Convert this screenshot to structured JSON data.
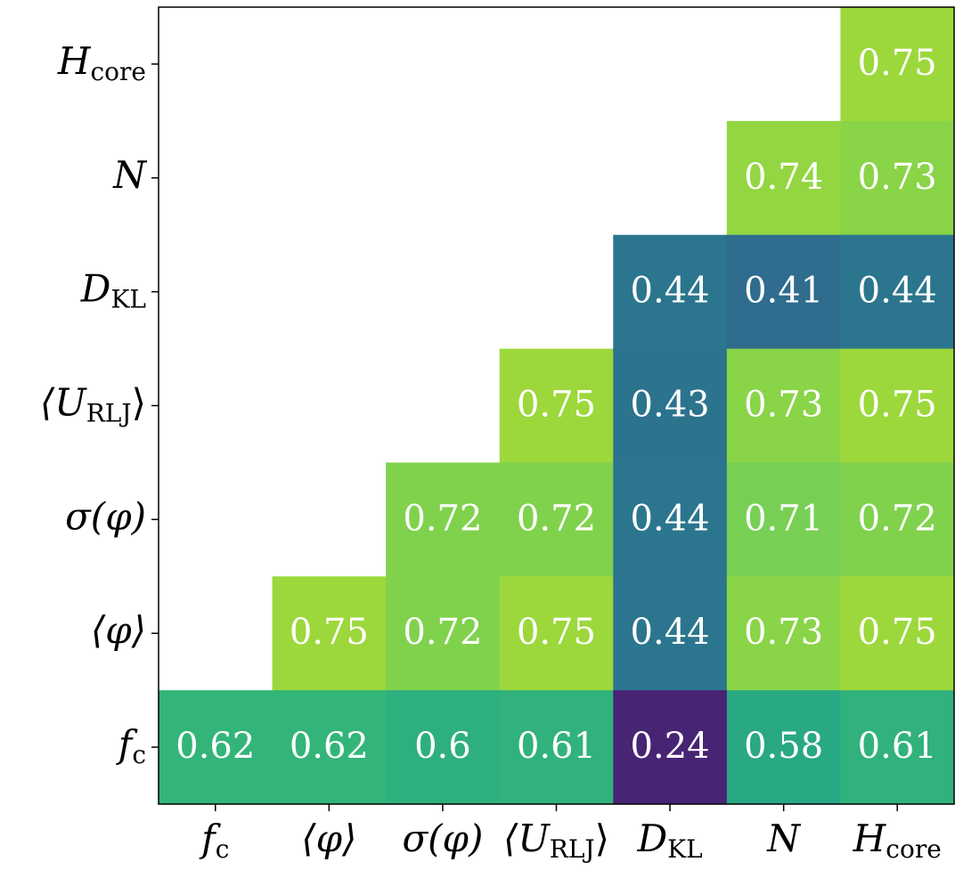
{
  "chart_data": {
    "type": "heatmap",
    "colormap": "viridis",
    "x_categories": [
      {
        "base": "f",
        "sub": "c"
      },
      {
        "base": "⟨φ⟩"
      },
      {
        "base": "σ(φ)"
      },
      {
        "base": "⟨U",
        "sub": "RLJ",
        "after": "⟩"
      },
      {
        "base": "D",
        "sub": "KL"
      },
      {
        "base": "N"
      },
      {
        "base": "H",
        "sub": "core"
      }
    ],
    "y_categories": [
      {
        "base": "H",
        "sub": "core"
      },
      {
        "base": "N"
      },
      {
        "base": "D",
        "sub": "KL"
      },
      {
        "base": "⟨U",
        "sub": "RLJ",
        "after": "⟩"
      },
      {
        "base": "σ(φ)"
      },
      {
        "base": "⟨φ⟩"
      },
      {
        "base": "f",
        "sub": "c"
      }
    ],
    "values": [
      [
        null,
        null,
        null,
        null,
        null,
        null,
        0.75
      ],
      [
        null,
        null,
        null,
        null,
        null,
        0.74,
        0.73
      ],
      [
        null,
        null,
        null,
        null,
        0.44,
        0.41,
        0.44
      ],
      [
        null,
        null,
        null,
        0.75,
        0.43,
        0.73,
        0.75
      ],
      [
        null,
        null,
        0.72,
        0.72,
        0.44,
        0.71,
        0.72
      ],
      [
        null,
        0.75,
        0.72,
        0.75,
        0.44,
        0.73,
        0.75
      ],
      [
        0.62,
        0.62,
        0.6,
        0.61,
        0.24,
        0.58,
        0.61
      ]
    ]
  }
}
